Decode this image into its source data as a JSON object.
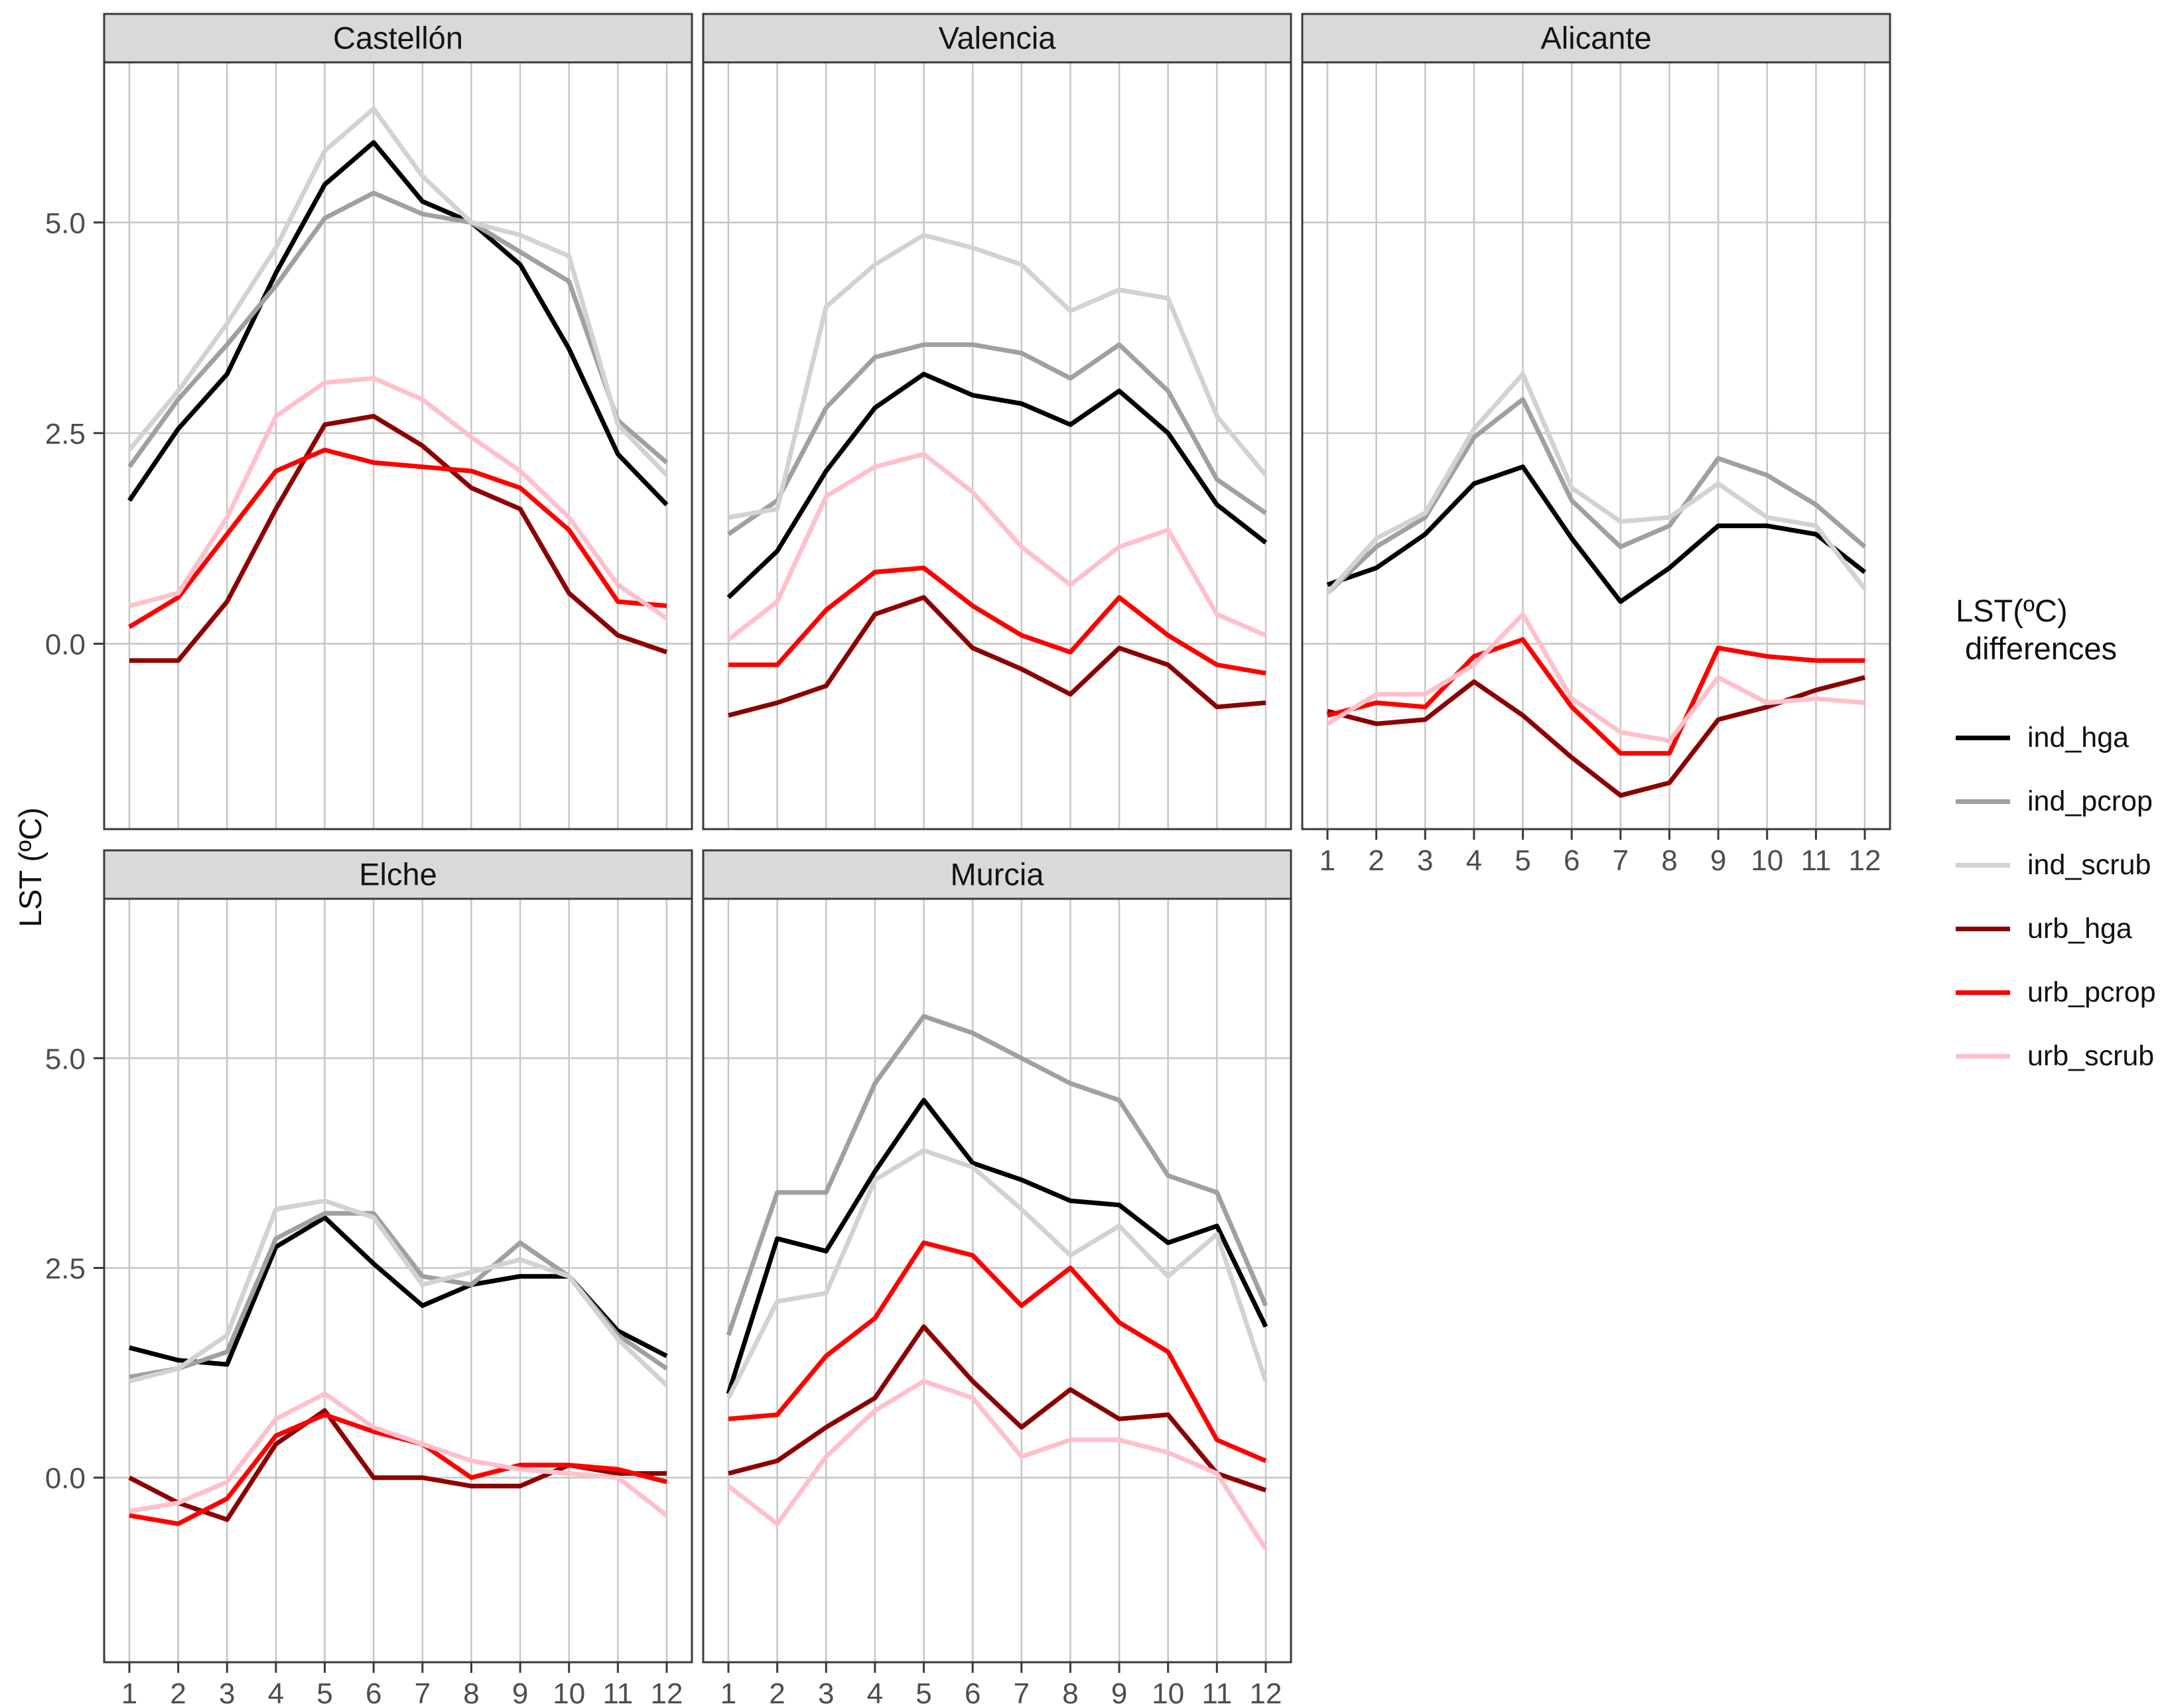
{
  "axis": {
    "y_title": "LST (ºC)"
  },
  "legend": {
    "title_line1": "LST(ºC)",
    "title_line2": "differences"
  },
  "chart_data": {
    "type": "line",
    "title": "",
    "xlabel": "",
    "ylabel": "LST (ºC)",
    "x": {
      "ticks": [
        "1",
        "2",
        "3",
        "4",
        "5",
        "6",
        "7",
        "8",
        "9",
        "10",
        "11",
        "12"
      ]
    },
    "y": {
      "ticks": [
        "5.0",
        "2.5",
        "0.0"
      ],
      "tick_values": [
        5.0,
        2.5,
        0.0
      ],
      "lim": [
        -2.2,
        6.9
      ],
      "grid": "on"
    },
    "legend_position": "right",
    "series": [
      {
        "key": "ind_hga",
        "label": "ind_hga",
        "color": "#000000"
      },
      {
        "key": "ind_pcrop",
        "label": "ind_pcrop",
        "color": "#A0A0A0"
      },
      {
        "key": "ind_scrub",
        "label": "ind_scrub",
        "color": "#D2D2D2"
      },
      {
        "key": "urb_hga",
        "label": "urb_hga",
        "color": "#8B0000"
      },
      {
        "key": "urb_pcrop",
        "label": "urb_pcrop",
        "color": "#FF0000"
      },
      {
        "key": "urb_scrub",
        "label": "urb_scrub",
        "color": "#FFC0CB"
      }
    ],
    "facets": [
      {
        "name": "Castellón",
        "values": {
          "ind_hga": [
            1.7,
            2.55,
            3.2,
            4.4,
            5.45,
            5.95,
            5.25,
            5.0,
            4.5,
            3.5,
            2.25,
            1.65
          ],
          "ind_pcrop": [
            2.1,
            2.9,
            3.55,
            4.25,
            5.05,
            5.35,
            5.1,
            5.0,
            4.65,
            4.3,
            2.65,
            2.15
          ],
          "ind_scrub": [
            2.3,
            3.0,
            3.8,
            4.7,
            5.85,
            6.35,
            5.55,
            5.0,
            4.85,
            4.6,
            2.6,
            2.0
          ],
          "urb_hga": [
            -0.2,
            -0.2,
            0.5,
            1.6,
            2.6,
            2.7,
            2.35,
            1.85,
            1.6,
            0.6,
            0.1,
            -0.1
          ],
          "urb_pcrop": [
            0.2,
            0.55,
            1.3,
            2.05,
            2.3,
            2.15,
            2.1,
            2.05,
            1.85,
            1.35,
            0.5,
            0.45
          ],
          "urb_scrub": [
            0.45,
            0.6,
            1.5,
            2.7,
            3.1,
            3.15,
            2.9,
            2.45,
            2.05,
            1.5,
            0.7,
            0.3
          ]
        }
      },
      {
        "name": "Valencia",
        "values": {
          "ind_hga": [
            0.55,
            1.1,
            2.05,
            2.8,
            3.2,
            2.95,
            2.85,
            2.6,
            3.0,
            2.5,
            1.65,
            1.2
          ],
          "ind_pcrop": [
            1.3,
            1.7,
            2.8,
            3.4,
            3.55,
            3.55,
            3.45,
            3.15,
            3.55,
            3.0,
            1.95,
            1.55
          ],
          "ind_scrub": [
            1.5,
            1.6,
            4.0,
            4.5,
            4.85,
            4.7,
            4.5,
            3.95,
            4.2,
            4.1,
            2.7,
            2.0
          ],
          "urb_hga": [
            -0.85,
            -0.7,
            -0.5,
            0.35,
            0.55,
            -0.05,
            -0.3,
            -0.6,
            -0.05,
            -0.25,
            -0.75,
            -0.7
          ],
          "urb_pcrop": [
            -0.25,
            -0.25,
            0.4,
            0.85,
            0.9,
            0.45,
            0.1,
            -0.1,
            0.55,
            0.1,
            -0.25,
            -0.35
          ],
          "urb_scrub": [
            0.05,
            0.5,
            1.75,
            2.1,
            2.25,
            1.8,
            1.15,
            0.7,
            1.15,
            1.35,
            0.35,
            0.1
          ]
        }
      },
      {
        "name": "Alicante",
        "values": {
          "ind_hga": [
            0.7,
            0.9,
            1.3,
            1.9,
            2.1,
            1.25,
            0.5,
            0.9,
            1.4,
            1.4,
            1.3,
            0.85
          ],
          "ind_pcrop": [
            0.6,
            1.15,
            1.5,
            2.45,
            2.9,
            1.7,
            1.15,
            1.4,
            2.2,
            2.0,
            1.65,
            1.15
          ],
          "ind_scrub": [
            0.6,
            1.25,
            1.55,
            2.55,
            3.2,
            1.85,
            1.45,
            1.5,
            1.9,
            1.5,
            1.4,
            0.65
          ],
          "urb_hga": [
            -0.8,
            -0.95,
            -0.9,
            -0.45,
            -0.85,
            -1.35,
            -1.8,
            -1.65,
            -0.9,
            -0.75,
            -0.55,
            -0.4
          ],
          "urb_pcrop": [
            -0.85,
            -0.7,
            -0.75,
            -0.15,
            0.05,
            -0.75,
            -1.3,
            -1.3,
            -0.05,
            -0.15,
            -0.2,
            -0.2
          ],
          "urb_scrub": [
            -0.95,
            -0.6,
            -0.6,
            -0.25,
            0.35,
            -0.65,
            -1.05,
            -1.15,
            -0.4,
            -0.7,
            -0.65,
            -0.7
          ]
        }
      },
      {
        "name": "Elche",
        "values": {
          "ind_hga": [
            1.55,
            1.4,
            1.35,
            2.75,
            3.1,
            2.55,
            2.05,
            2.3,
            2.4,
            2.4,
            1.75,
            1.45
          ],
          "ind_pcrop": [
            1.2,
            1.3,
            1.5,
            2.85,
            3.15,
            3.15,
            2.4,
            2.3,
            2.8,
            2.4,
            1.7,
            1.3
          ],
          "ind_scrub": [
            1.15,
            1.3,
            1.7,
            3.2,
            3.3,
            3.1,
            2.3,
            2.45,
            2.6,
            2.4,
            1.65,
            1.1
          ],
          "urb_hga": [
            0.0,
            -0.3,
            -0.5,
            0.4,
            0.8,
            0.0,
            0.0,
            -0.1,
            -0.1,
            0.15,
            0.05,
            0.05
          ],
          "urb_pcrop": [
            -0.45,
            -0.55,
            -0.25,
            0.5,
            0.75,
            0.55,
            0.4,
            0.0,
            0.15,
            0.15,
            0.1,
            -0.05
          ],
          "urb_scrub": [
            -0.4,
            -0.3,
            -0.05,
            0.7,
            1.0,
            0.6,
            0.4,
            0.2,
            0.1,
            0.05,
            0.0,
            -0.45
          ]
        }
      },
      {
        "name": "Murcia",
        "values": {
          "ind_hga": [
            1.0,
            2.85,
            2.7,
            3.65,
            4.5,
            3.75,
            3.55,
            3.3,
            3.25,
            2.8,
            3.0,
            1.8
          ],
          "ind_pcrop": [
            1.7,
            3.4,
            3.4,
            4.7,
            5.5,
            5.3,
            5.0,
            4.7,
            4.5,
            3.6,
            3.4,
            2.05
          ],
          "ind_scrub": [
            0.95,
            2.1,
            2.2,
            3.55,
            3.9,
            3.7,
            3.2,
            2.65,
            3.0,
            2.4,
            2.9,
            1.15
          ],
          "urb_hga": [
            0.05,
            0.2,
            0.6,
            0.95,
            1.8,
            1.15,
            0.6,
            1.05,
            0.7,
            0.75,
            0.05,
            -0.15
          ],
          "urb_pcrop": [
            0.7,
            0.75,
            1.45,
            1.9,
            2.8,
            2.65,
            2.05,
            2.5,
            1.85,
            1.5,
            0.45,
            0.2
          ],
          "urb_scrub": [
            -0.1,
            -0.55,
            0.25,
            0.8,
            1.15,
            0.95,
            0.25,
            0.45,
            0.45,
            0.3,
            0.05,
            -0.85
          ]
        }
      }
    ]
  }
}
